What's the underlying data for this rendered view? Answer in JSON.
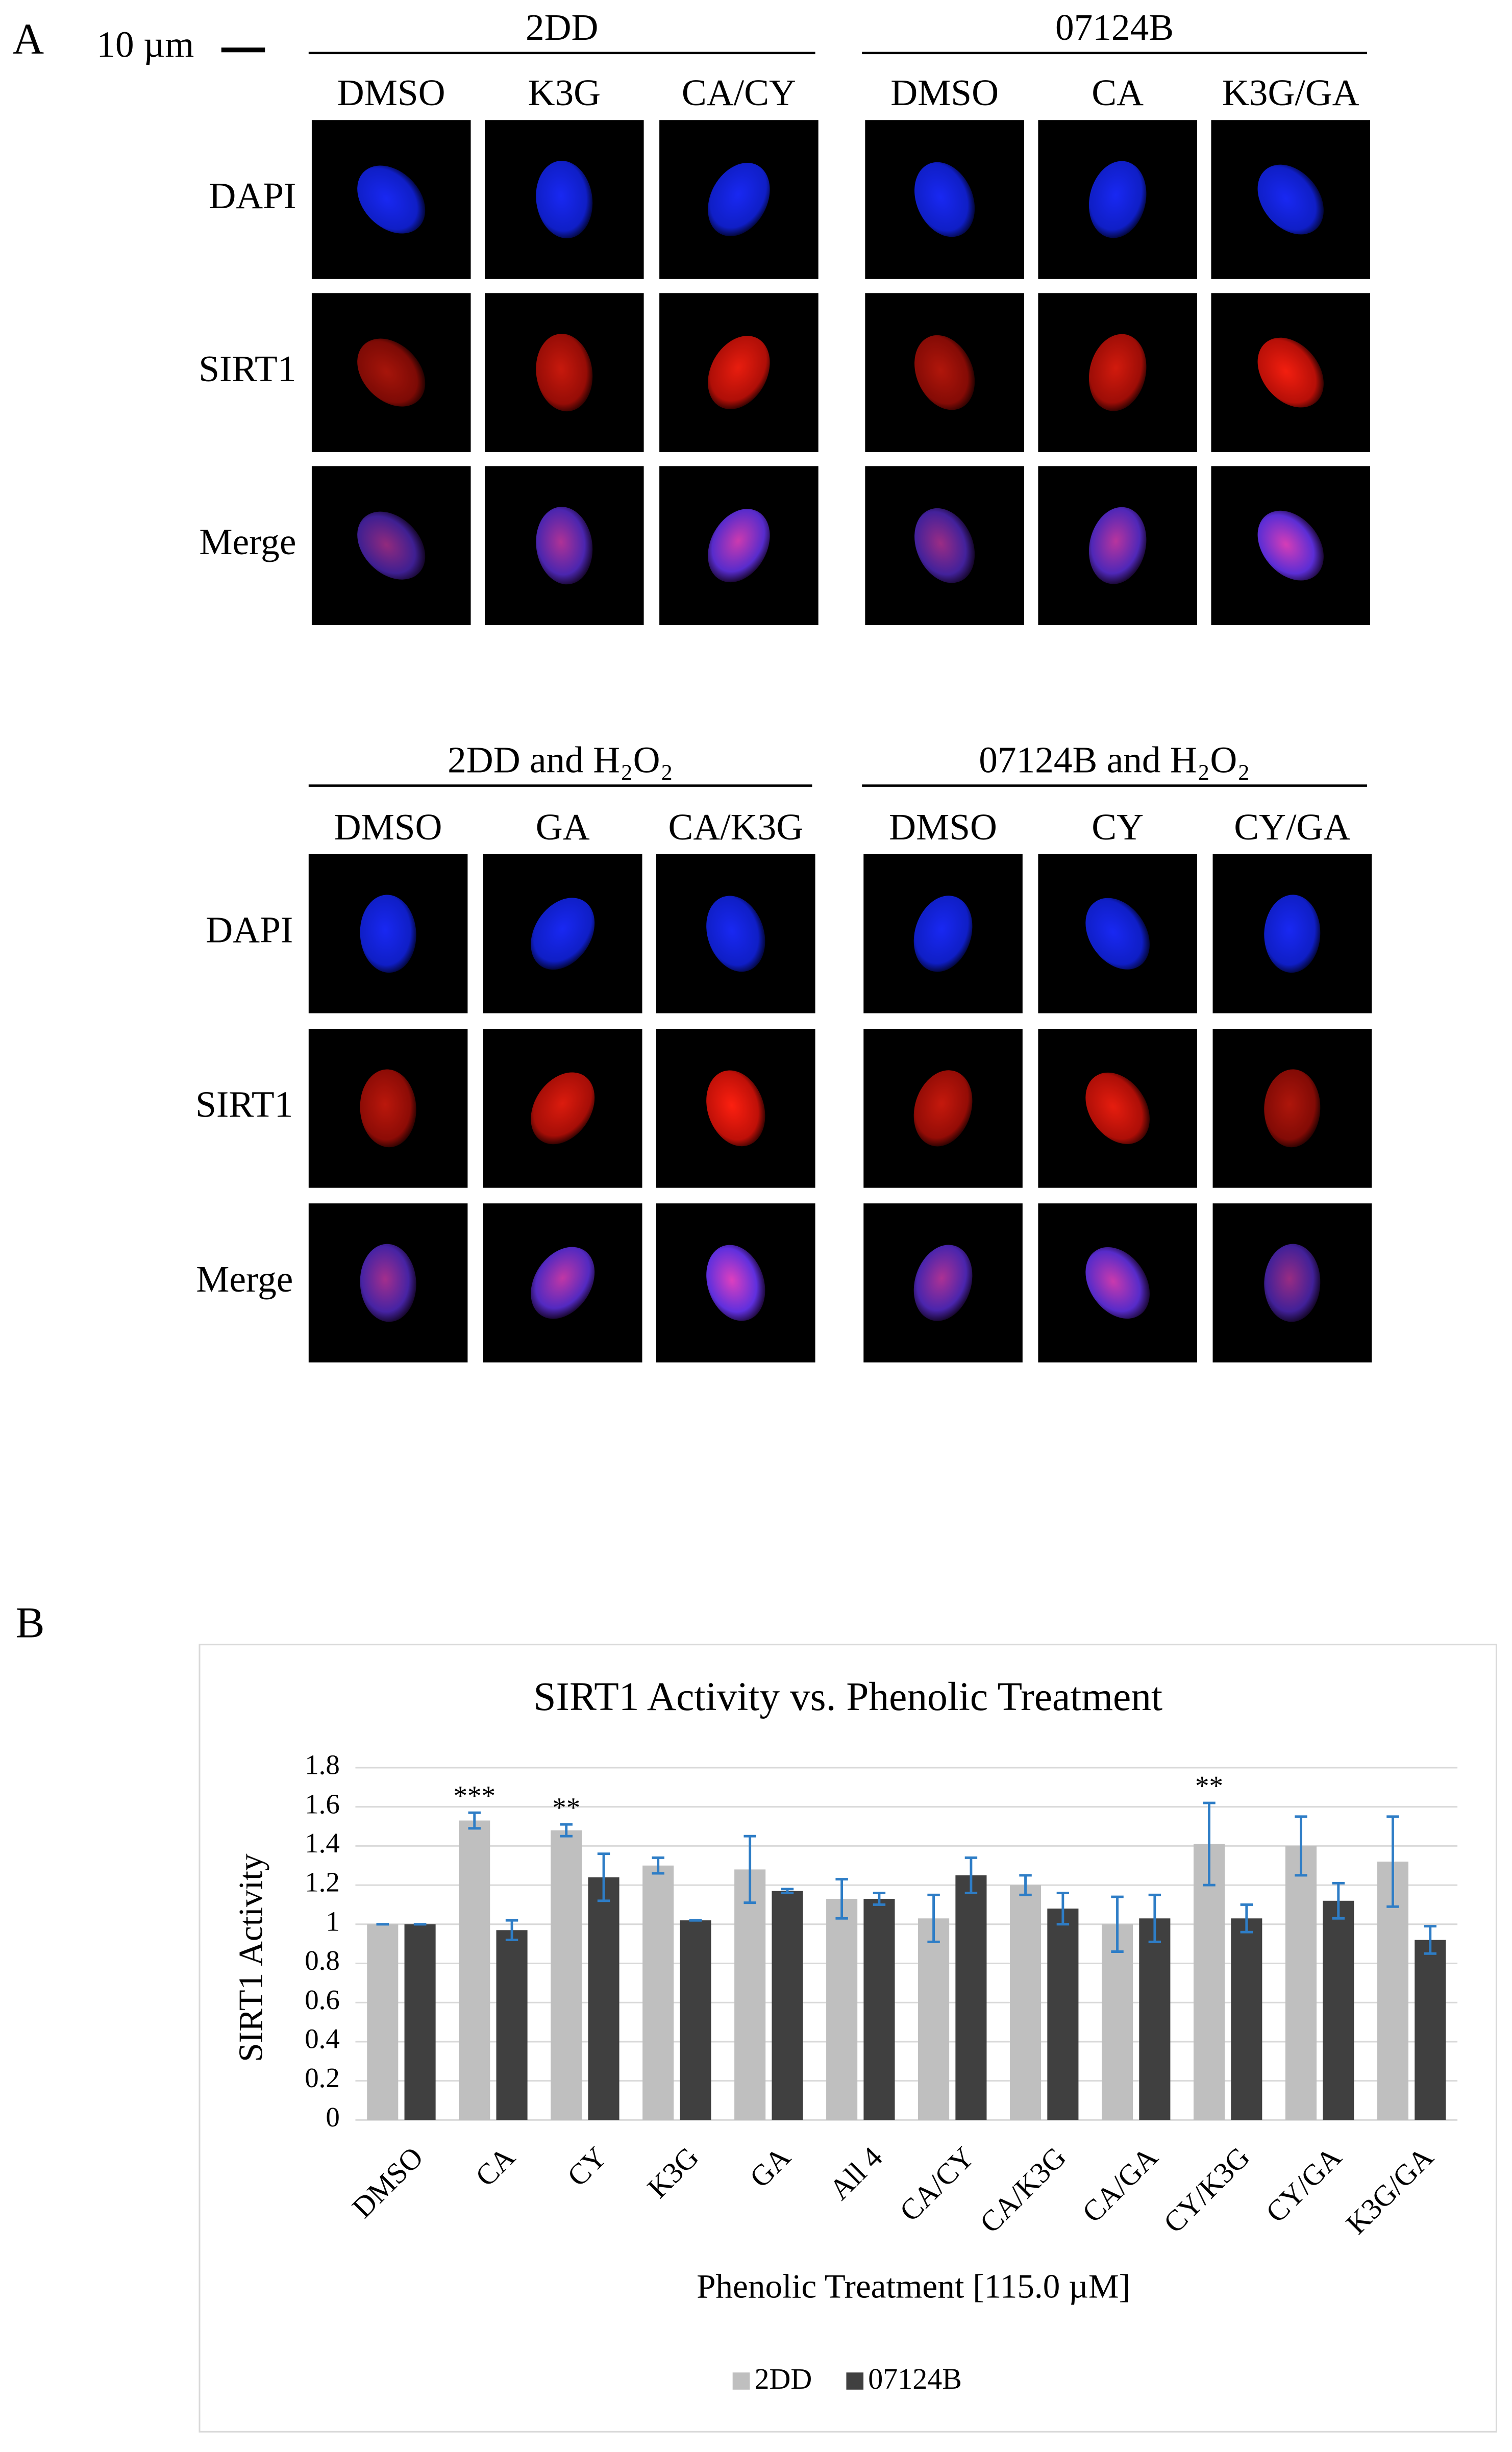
{
  "panel_a": {
    "label": "A",
    "scale_bar": "10 µm",
    "blocks": [
      {
        "row_labels": [
          "DAPI",
          "SIRT1",
          "Merge"
        ],
        "groups": [
          {
            "title": "2DD",
            "columns": [
              "DMSO",
              "K3G",
              "CA/CY"
            ]
          },
          {
            "title": "07124B",
            "columns": [
              "DMSO",
              "CA",
              "K3G/GA"
            ]
          }
        ]
      },
      {
        "row_labels": [
          "DAPI",
          "SIRT1",
          "Merge"
        ],
        "groups": [
          {
            "title": "2DD and H₂O₂",
            "columns": [
              "DMSO",
              "GA",
              "CA/K3G"
            ]
          },
          {
            "title": "07124B and H₂O₂",
            "columns": [
              "DMSO",
              "CY",
              "CY/GA"
            ]
          }
        ]
      }
    ]
  },
  "panel_b": {
    "label": "B"
  },
  "chart_data": {
    "type": "bar",
    "title": "SIRT1 Activity vs. Phenolic Treatment",
    "x_label": "Phenolic Treatment [115.0 µM]",
    "y_label": "SIRT1 Activity",
    "categories": [
      "DMSO",
      "CA",
      "CY",
      "K3G",
      "GA",
      "All 4",
      "CA/CY",
      "CA/K3G",
      "CA/GA",
      "CY/K3G",
      "CY/GA",
      "K3G/GA"
    ],
    "series": [
      {
        "name": "2DD",
        "color": "#bfbfbf",
        "values": [
          1.0,
          1.53,
          1.48,
          1.3,
          1.28,
          1.13,
          1.03,
          1.2,
          1.0,
          1.41,
          1.4,
          1.32
        ],
        "errors": [
          0,
          0.04,
          0.03,
          0.04,
          0.17,
          0.1,
          0.12,
          0.05,
          0.14,
          0.21,
          0.15,
          0.23
        ],
        "significance": [
          null,
          "***",
          "**",
          null,
          null,
          null,
          null,
          null,
          null,
          "**",
          null,
          null
        ]
      },
      {
        "name": "07124B",
        "color": "#404040",
        "values": [
          1.0,
          0.97,
          1.24,
          1.02,
          1.17,
          1.13,
          1.25,
          1.08,
          1.03,
          1.03,
          1.12,
          0.92
        ],
        "errors": [
          0,
          0.05,
          0.12,
          0,
          0.01,
          0.03,
          0.09,
          0.08,
          0.12,
          0.07,
          0.09,
          0.07
        ]
      }
    ],
    "error_color": "#2e7dc6",
    "ylim": [
      0,
      1.8
    ],
    "yticks": [
      0,
      0.2,
      0.4,
      0.6,
      0.8,
      1,
      1.2,
      1.4,
      1.6,
      1.8
    ],
    "grid": true,
    "legend": "bottom"
  }
}
